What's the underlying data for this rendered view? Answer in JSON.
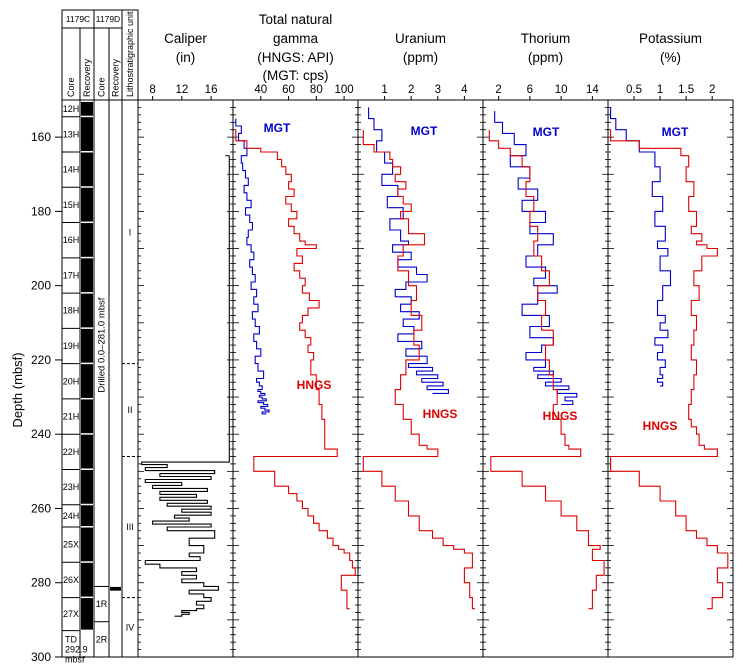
{
  "y_axis": {
    "label": "Depth (mbsf)",
    "min": 150,
    "max": 300,
    "ticks": [
      160,
      180,
      200,
      220,
      240,
      260,
      280,
      300
    ]
  },
  "core_column": {
    "hole_c": "1179C",
    "hole_d": "1179D",
    "headers": [
      "Core",
      "Recovery",
      "Core",
      "Recovery",
      "Lithostratigraphic unit"
    ],
    "drilled_text": "Drilled 0.0–281.0 mbsf",
    "td_lines": [
      "TD",
      "292.9",
      "mbsf"
    ],
    "cores_c": [
      {
        "name": "12H",
        "top": 150.4,
        "bottom": 154.5
      },
      {
        "name": "13H",
        "top": 154.5,
        "bottom": 164.0
      },
      {
        "name": "14H",
        "top": 164.0,
        "bottom": 173.5
      },
      {
        "name": "15H",
        "top": 173.5,
        "bottom": 183.0
      },
      {
        "name": "16H",
        "top": 183.0,
        "bottom": 192.5
      },
      {
        "name": "17H",
        "top": 192.5,
        "bottom": 202.0
      },
      {
        "name": "18H",
        "top": 202.0,
        "bottom": 211.5
      },
      {
        "name": "19H",
        "top": 211.5,
        "bottom": 221.0
      },
      {
        "name": "20H",
        "top": 221.0,
        "bottom": 230.5
      },
      {
        "name": "21H",
        "top": 230.5,
        "bottom": 240.0
      },
      {
        "name": "22H",
        "top": 240.0,
        "bottom": 249.5
      },
      {
        "name": "23H",
        "top": 249.5,
        "bottom": 259.0
      },
      {
        "name": "24H",
        "top": 259.0,
        "bottom": 265.0
      },
      {
        "name": "25X",
        "top": 265.0,
        "bottom": 274.5
      },
      {
        "name": "26X",
        "top": 274.5,
        "bottom": 284.0
      },
      {
        "name": "27X",
        "top": 284.0,
        "bottom": 292.9
      }
    ],
    "cores_d": [
      {
        "name": "1R",
        "top": 281.0,
        "bottom": 290.5
      },
      {
        "name": "2R",
        "top": 290.5,
        "bottom": 300.0
      }
    ],
    "units": [
      {
        "name": "I",
        "top": 150.4,
        "bottom": 221.0
      },
      {
        "name": "II",
        "top": 221.0,
        "bottom": 246.0
      },
      {
        "name": "III",
        "top": 246.0,
        "bottom": 284.0
      },
      {
        "name": "IV",
        "top": 284.0,
        "bottom": 300.0
      }
    ]
  },
  "chart_data": [
    {
      "type": "line",
      "title": "Caliper",
      "subtitle": "(in)",
      "xlim": [
        6,
        19
      ],
      "xticks": [
        8,
        12,
        16
      ],
      "series": [
        {
          "name": "",
          "color": "#000000",
          "x": [
            18.5,
            18.5,
            18.5,
            6.5,
            10,
            7,
            16.5,
            9,
            16,
            7,
            12,
            8,
            15.5,
            9,
            14,
            9,
            15.5,
            10,
            16,
            12,
            16,
            11,
            13,
            8,
            16,
            10,
            16.5,
            13,
            15,
            13,
            14.5,
            7,
            9,
            14,
            12,
            14,
            12,
            15,
            17,
            13,
            15,
            16,
            14,
            15,
            14,
            12,
            13,
            12,
            11
          ],
          "y": [
            165,
            190,
            247.5,
            247.5,
            248.2,
            249,
            249.8,
            250.6,
            251.4,
            252.2,
            253,
            253.8,
            254.6,
            255.4,
            256.2,
            257,
            257.8,
            258.6,
            259.4,
            260.2,
            261,
            261.8,
            262.6,
            263.4,
            264.2,
            265,
            266,
            268,
            270,
            272,
            273,
            274,
            275,
            276,
            277,
            278,
            279,
            280,
            281,
            282,
            283,
            284,
            285,
            286,
            287,
            287.5,
            288,
            288.5,
            289
          ]
        }
      ]
    },
    {
      "type": "line",
      "title": "Total natural gamma",
      "subtitle": "(HNGS: API)",
      "subtitle2": "(MGT: cps)",
      "xlim": [
        20,
        110
      ],
      "xticks": [
        40,
        60,
        80,
        100
      ],
      "series": [
        {
          "name": "MGT",
          "color": "#0000cc",
          "x": [
            22,
            26,
            24,
            28,
            30,
            26,
            27,
            29,
            31,
            28,
            30,
            33,
            29,
            32,
            34,
            31,
            30,
            33,
            35,
            32,
            34,
            36,
            33,
            37,
            35,
            38,
            34,
            36,
            39,
            35,
            37,
            40,
            36,
            38,
            42,
            37,
            39,
            41,
            38,
            40,
            43,
            39,
            41,
            44,
            38,
            42,
            45,
            40,
            43,
            46,
            41,
            44
          ],
          "y": [
            155,
            157,
            159,
            161,
            163,
            165,
            167,
            169,
            171,
            173,
            175,
            177,
            179,
            181,
            183,
            185,
            187,
            189,
            191,
            193,
            195,
            197,
            199,
            201,
            203,
            205,
            207,
            209,
            211,
            213,
            215,
            217,
            219,
            221,
            223,
            225,
            226,
            227,
            228,
            228.5,
            229,
            229.5,
            230,
            230.5,
            231,
            231.5,
            232,
            232.5,
            233,
            233.5,
            234,
            234.5
          ]
        },
        {
          "name": "HNGS",
          "color": "#dd0000",
          "x": [
            22,
            30,
            40,
            52,
            55,
            58,
            62,
            60,
            64,
            58,
            62,
            66,
            60,
            64,
            68,
            72,
            80,
            66,
            70,
            64,
            68,
            72,
            70,
            75,
            82,
            74,
            70,
            68,
            72,
            76,
            74,
            78,
            76,
            80,
            82,
            84,
            86,
            95,
            35,
            50,
            60,
            66,
            70,
            74,
            78,
            82,
            88,
            92,
            96,
            100,
            104,
            106,
            108,
            98,
            102,
            104
          ],
          "y": [
            158,
            161,
            163,
            164,
            166,
            168,
            170,
            172,
            174,
            176,
            178,
            180,
            182,
            184,
            186,
            188,
            189,
            190,
            192,
            194,
            196,
            198,
            200,
            202,
            204,
            206,
            208,
            210,
            212,
            214,
            216,
            218,
            220,
            224,
            228,
            232,
            236,
            244,
            246,
            250,
            254,
            256,
            258,
            260,
            262,
            264,
            266,
            268,
            270,
            271,
            272,
            274,
            276,
            278,
            282,
            287
          ]
        }
      ],
      "annotations": [
        "MGT",
        "HNGS"
      ]
    },
    {
      "type": "line",
      "title": "Uranium",
      "subtitle": "(ppm)",
      "xlim": [
        0,
        4.7
      ],
      "xticks": [
        1,
        2,
        3,
        4
      ],
      "series": [
        {
          "name": "MGT",
          "color": "#0000cc",
          "x": [
            0.4,
            0.6,
            0.9,
            0.7,
            1.0,
            1.3,
            0.9,
            1.5,
            1.1,
            1.7,
            1.2,
            1.6,
            1.9,
            1.3,
            2.0,
            1.5,
            2.2,
            2.6,
            1.8,
            1.4,
            2.0,
            1.6,
            2.3,
            1.7,
            2.1,
            1.5,
            2.4,
            1.8,
            2.6,
            1.9,
            2.8,
            2.2,
            3.0,
            2.4,
            3.2,
            2.6,
            3.4,
            2.8
          ],
          "y": [
            152,
            155,
            158,
            161,
            164,
            167,
            170,
            173,
            176,
            179,
            182,
            185,
            188,
            189,
            191,
            193,
            195,
            197,
            199,
            201,
            203,
            205,
            207,
            209,
            211,
            213,
            215,
            217,
            219,
            221,
            222,
            223,
            224,
            225,
            226,
            227,
            228,
            229
          ]
        },
        {
          "name": "HNGS",
          "color": "#dd0000",
          "x": [
            0.2,
            0.6,
            1.2,
            1.3,
            1.6,
            1.4,
            1.8,
            1.5,
            1.7,
            2.0,
            1.6,
            1.9,
            2.5,
            1.7,
            1.5,
            1.9,
            2.2,
            2.0,
            2.4,
            2.1,
            2.3,
            1.8,
            1.6,
            1.4,
            1.7,
            2.0,
            2.3,
            2.6,
            3.0,
            0.2,
            0.9,
            1.4,
            1.9,
            2.3,
            2.8,
            3.2,
            3.6,
            4.0,
            4.3,
            4.0,
            4.2,
            4.3,
            4.4
          ],
          "y": [
            158,
            162,
            164,
            166,
            168,
            170,
            172,
            174,
            176,
            178,
            180,
            182,
            186,
            189,
            192,
            196,
            200,
            204,
            208,
            212,
            216,
            220,
            224,
            228,
            232,
            236,
            240,
            243,
            244,
            246,
            250,
            254,
            258,
            262,
            266,
            268,
            270,
            271,
            272,
            276,
            280,
            284,
            287
          ]
        }
      ],
      "annotations": [
        "MGT",
        "HNGS"
      ]
    },
    {
      "type": "line",
      "title": "Thorium",
      "subtitle": "(ppm)",
      "xlim": [
        0,
        16
      ],
      "xticks": [
        2,
        6,
        10,
        14
      ],
      "series": [
        {
          "name": "MGT",
          "color": "#0000cc",
          "x": [
            1.5,
            2.5,
            4.0,
            5.5,
            3.5,
            6.0,
            4.5,
            7.0,
            5.0,
            8.0,
            6.0,
            9.0,
            7.0,
            5.5,
            8.0,
            6.5,
            9.5,
            7.0,
            5.0,
            8.5,
            6.0,
            9.0,
            7.5,
            5.5,
            8.0,
            6.5,
            9.0,
            7.0,
            10.0,
            8.0,
            11.0,
            9.5,
            12.0,
            10.5,
            11.5,
            10.0
          ],
          "y": [
            153,
            156,
            159,
            162,
            165,
            168,
            171,
            174,
            177,
            180,
            183,
            186,
            189,
            192,
            195,
            198,
            200,
            202,
            205,
            208,
            211,
            214,
            216,
            218,
            220,
            222,
            223,
            224,
            225,
            226,
            227,
            228,
            229,
            230,
            231,
            232
          ]
        },
        {
          "name": "HNGS",
          "color": "#dd0000",
          "x": [
            0.8,
            2.0,
            3.5,
            5.0,
            6.0,
            5.5,
            6.5,
            6.0,
            7.0,
            6.5,
            7.5,
            8.5,
            7.0,
            8.0,
            7.5,
            9.0,
            8.0,
            8.5,
            9.0,
            9.5,
            9.0,
            10.0,
            10.5,
            11.0,
            12.5,
            1.0,
            5.0,
            8.0,
            10.0,
            12.0,
            13.5,
            15.0,
            14.0,
            15.5,
            14.5,
            14.0,
            13.5
          ],
          "y": [
            158,
            161,
            163,
            165,
            168,
            172,
            176,
            180,
            184,
            188,
            192,
            196,
            200,
            204,
            208,
            212,
            216,
            220,
            224,
            228,
            232,
            236,
            240,
            243,
            244,
            246,
            250,
            254,
            258,
            262,
            266,
            270,
            271,
            274,
            278,
            282,
            287
          ]
        }
      ],
      "annotations": [
        "MGT",
        "HNGS"
      ]
    },
    {
      "type": "line",
      "title": "Potassium",
      "subtitle": "(%)",
      "xlim": [
        0,
        2.4
      ],
      "xticks": [
        0.5,
        1,
        1.5,
        2
      ],
      "series": [
        {
          "name": "MGT",
          "color": "#0000cc",
          "x": [
            0.05,
            0.15,
            0.35,
            0.6,
            0.9,
            1.0,
            0.85,
            1.05,
            0.9,
            1.1,
            0.95,
            1.15,
            1.0,
            1.2,
            1.05,
            0.95,
            1.1,
            1.0,
            1.15,
            0.9,
            1.05,
            0.95,
            1.1,
            1.0,
            1.05,
            0.95,
            1.05,
            1.0
          ],
          "y": [
            152,
            155,
            158,
            161,
            164,
            168,
            172,
            176,
            180,
            184,
            188,
            190,
            192,
            196,
            200,
            204,
            208,
            210,
            212,
            214,
            216,
            218,
            220,
            222,
            224,
            225,
            226,
            227
          ]
        },
        {
          "name": "HNGS",
          "color": "#dd0000",
          "x": [
            0.05,
            0.6,
            1.4,
            1.55,
            1.5,
            1.65,
            1.55,
            1.7,
            1.6,
            1.8,
            1.7,
            1.9,
            2.1,
            1.8,
            1.65,
            1.75,
            1.6,
            1.7,
            1.65,
            1.6,
            1.7,
            1.65,
            1.6,
            1.55,
            1.6,
            1.7,
            1.75,
            1.85,
            2.1,
            0.05,
            0.6,
            1.0,
            1.3,
            1.5,
            1.7,
            1.9,
            2.1,
            2.3,
            2.1,
            2.2,
            2.0,
            1.9
          ],
          "y": [
            158,
            161,
            163,
            165,
            168,
            172,
            176,
            180,
            184,
            186,
            188,
            189,
            190,
            192,
            196,
            200,
            204,
            208,
            212,
            216,
            220,
            224,
            228,
            232,
            236,
            238,
            240,
            243,
            244,
            246,
            250,
            254,
            258,
            262,
            266,
            268,
            270,
            272,
            276,
            280,
            284,
            287
          ]
        }
      ],
      "annotations": [
        "MGT",
        "HNGS"
      ]
    }
  ]
}
